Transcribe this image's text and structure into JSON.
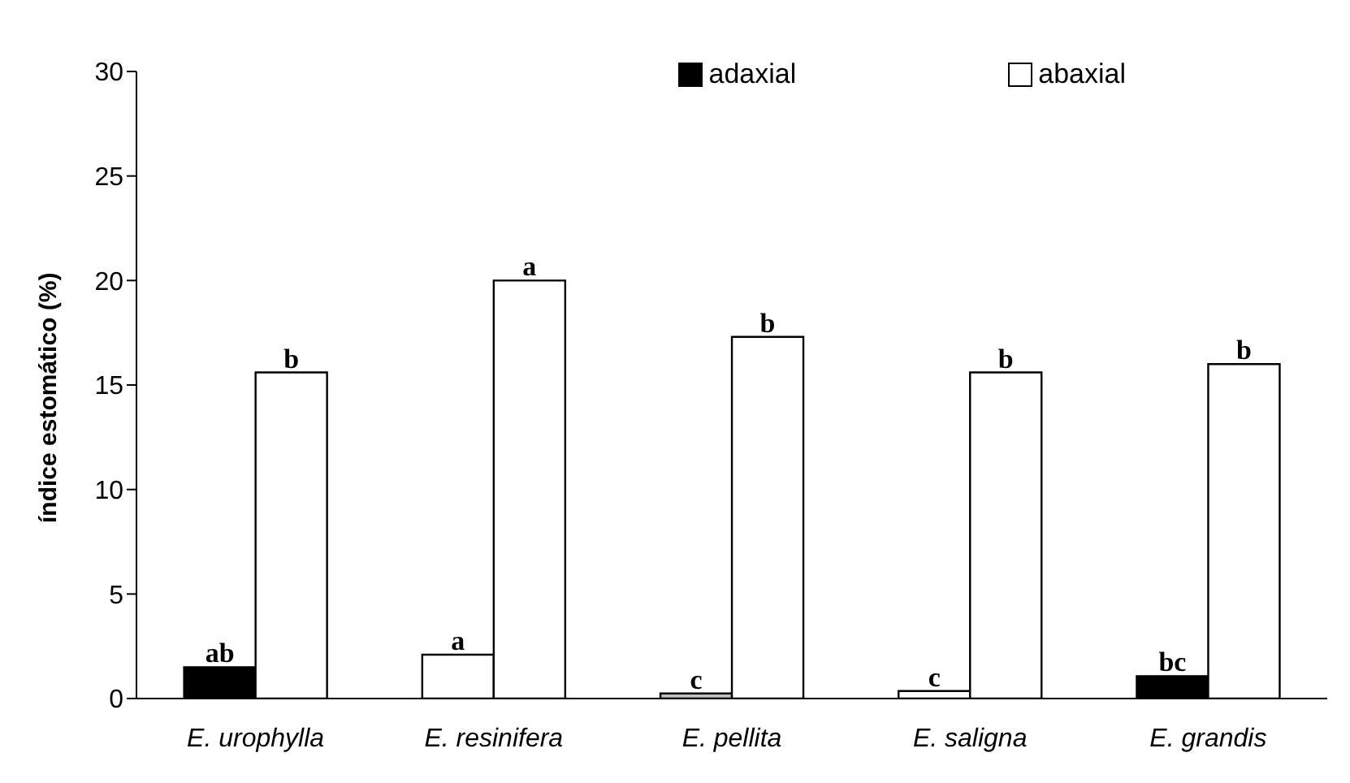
{
  "chart_data": {
    "type": "bar",
    "ylabel": "índice estomático (%)",
    "categories": [
      "E. urophylla",
      "E. resinifera",
      "E. pellita",
      "E. saligna",
      "E. grandis"
    ],
    "series": [
      {
        "name": "adaxial",
        "color": "#000000",
        "colors": [
          "#000000",
          "#ffffff",
          "#c0c0c0",
          "#ffffff",
          "#000000"
        ],
        "values": [
          1.5,
          2.1,
          0.24,
          0.36,
          1.07
        ],
        "value_labels": [
          "ab",
          "a",
          "c",
          "c",
          "bc"
        ]
      },
      {
        "name": "abaxial",
        "color": "#ffffff",
        "values": [
          15.6,
          20.0,
          17.3,
          15.6,
          16.0
        ],
        "value_labels": [
          "b",
          "a",
          "b",
          "b",
          "b"
        ]
      }
    ],
    "ylim": [
      0,
      30
    ],
    "yticks": [
      0,
      5,
      10,
      15,
      20,
      25,
      30
    ],
    "grid": false,
    "legend": "top right"
  }
}
